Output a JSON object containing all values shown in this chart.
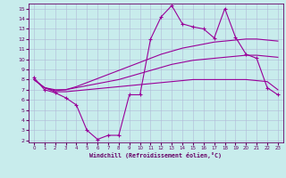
{
  "xlabel": "Windchill (Refroidissement éolien,°C)",
  "background_color": "#c8ecec",
  "grid_color": "#b0b8d8",
  "line_color": "#990099",
  "x_ticks": [
    0,
    1,
    2,
    3,
    4,
    5,
    6,
    7,
    8,
    9,
    10,
    11,
    12,
    13,
    14,
    15,
    16,
    17,
    18,
    19,
    20,
    21,
    22,
    23
  ],
  "y_ticks": [
    2,
    3,
    4,
    5,
    6,
    7,
    8,
    9,
    10,
    11,
    12,
    13,
    14,
    15
  ],
  "ylim": [
    1.8,
    15.5
  ],
  "xlim": [
    -0.5,
    23.5
  ],
  "line1_y": [
    8.0,
    7.2,
    7.0,
    7.0,
    7.2,
    7.4,
    7.6,
    7.8,
    8.0,
    8.3,
    8.6,
    8.9,
    9.2,
    9.5,
    9.7,
    9.9,
    10.0,
    10.1,
    10.2,
    10.3,
    10.4,
    10.4,
    10.3,
    10.2
  ],
  "line2_y": [
    8.0,
    7.2,
    6.9,
    7.0,
    7.3,
    7.7,
    8.1,
    8.5,
    8.9,
    9.3,
    9.7,
    10.1,
    10.5,
    10.8,
    11.1,
    11.3,
    11.5,
    11.7,
    11.8,
    11.9,
    12.0,
    12.0,
    11.9,
    11.8
  ],
  "line3_y": [
    8.0,
    7.2,
    6.8,
    6.8,
    6.9,
    7.0,
    7.1,
    7.2,
    7.3,
    7.4,
    7.5,
    7.6,
    7.7,
    7.8,
    7.9,
    8.0,
    8.0,
    8.0,
    8.0,
    8.0,
    8.0,
    7.9,
    7.8,
    7.0
  ],
  "line4_x": [
    0,
    1,
    2,
    3,
    4,
    5,
    6,
    7,
    8,
    9,
    10,
    11,
    12,
    13,
    14,
    15,
    16,
    17,
    18,
    19,
    20,
    21,
    22,
    23
  ],
  "line4_y": [
    8.2,
    7.0,
    6.7,
    6.2,
    5.5,
    3.0,
    2.1,
    2.5,
    2.5,
    6.5,
    6.5,
    12.0,
    14.2,
    15.3,
    13.5,
    13.2,
    13.0,
    12.1,
    15.0,
    12.2,
    10.5,
    10.1,
    7.2,
    6.5
  ]
}
